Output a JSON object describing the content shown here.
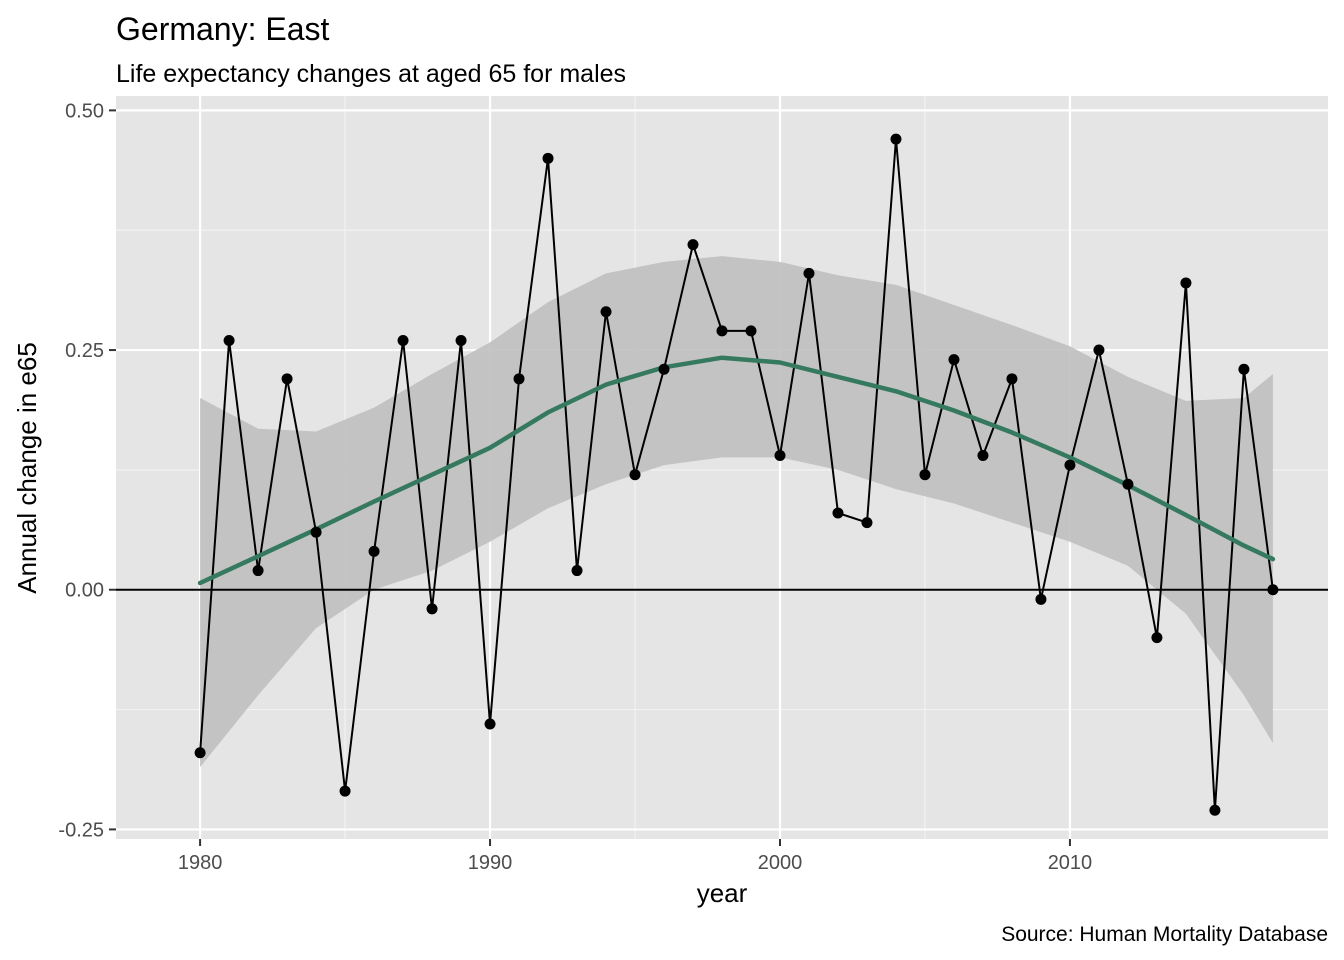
{
  "chart_data": {
    "type": "line",
    "title": "Germany: East",
    "subtitle": "Life expectancy changes at aged 65 for males",
    "caption": "Source: Human Mortality Database",
    "xlabel": "year",
    "ylabel": "Annual change in e65",
    "xlim": [
      1977.1,
      2018.9
    ],
    "ylim": [
      -0.26,
      0.515
    ],
    "x_ticks": [
      1980,
      1990,
      2000,
      2010
    ],
    "x_tick_labels": [
      "1980",
      "1990",
      "2000",
      "2010"
    ],
    "y_ticks": [
      -0.25,
      0,
      0.25,
      0.5
    ],
    "y_tick_labels": [
      "-0.25",
      "0.00",
      "0.25",
      "0.50"
    ],
    "grid": true,
    "reference_line_y": 0,
    "series": [
      {
        "kind": "observed",
        "color": "#000000",
        "x": [
          1980,
          1981,
          1982,
          1983,
          1984,
          1985,
          1986,
          1987,
          1988,
          1989,
          1990,
          1991,
          1992,
          1993,
          1994,
          1995,
          1996,
          1997,
          1998,
          1999,
          2000,
          2001,
          2002,
          2003,
          2004,
          2005,
          2006,
          2007,
          2008,
          2009,
          2010,
          2011,
          2012,
          2013,
          2014,
          2015,
          2016,
          2017
        ],
        "values": [
          -0.17,
          0.26,
          0.02,
          0.22,
          0.06,
          -0.21,
          0.04,
          0.26,
          -0.02,
          0.26,
          -0.14,
          0.22,
          0.45,
          0.02,
          0.29,
          0.12,
          0.23,
          0.36,
          0.27,
          0.27,
          0.14,
          0.33,
          0.08,
          0.07,
          0.47,
          0.12,
          0.24,
          0.14,
          0.22,
          -0.01,
          0.13,
          0.25,
          0.11,
          -0.05,
          0.32,
          -0.23,
          0.23,
          0.0
        ]
      },
      {
        "kind": "smooth",
        "color": "#35795f",
        "band_color": "#bfbfbf",
        "x": [
          1980,
          1982,
          1984,
          1986,
          1988,
          1990,
          1992,
          1994,
          1996,
          1998,
          2000,
          2002,
          2004,
          2006,
          2008,
          2010,
          2012,
          2014,
          2016,
          2017
        ],
        "values": [
          0.007,
          0.035,
          0.063,
          0.092,
          0.12,
          0.148,
          0.185,
          0.214,
          0.232,
          0.242,
          0.237,
          0.222,
          0.207,
          0.187,
          0.164,
          0.138,
          0.109,
          0.078,
          0.046,
          0.032
        ],
        "band_upper": [
          0.2,
          0.168,
          0.165,
          0.19,
          0.225,
          0.258,
          0.3,
          0.33,
          0.342,
          0.348,
          0.342,
          0.328,
          0.318,
          0.297,
          0.276,
          0.254,
          0.222,
          0.197,
          0.2,
          0.225
        ],
        "band_lower": [
          -0.185,
          -0.11,
          -0.04,
          0.0,
          0.02,
          0.05,
          0.085,
          0.11,
          0.13,
          0.138,
          0.138,
          0.125,
          0.105,
          0.09,
          0.07,
          0.05,
          0.025,
          -0.025,
          -0.11,
          -0.16
        ]
      }
    ]
  }
}
